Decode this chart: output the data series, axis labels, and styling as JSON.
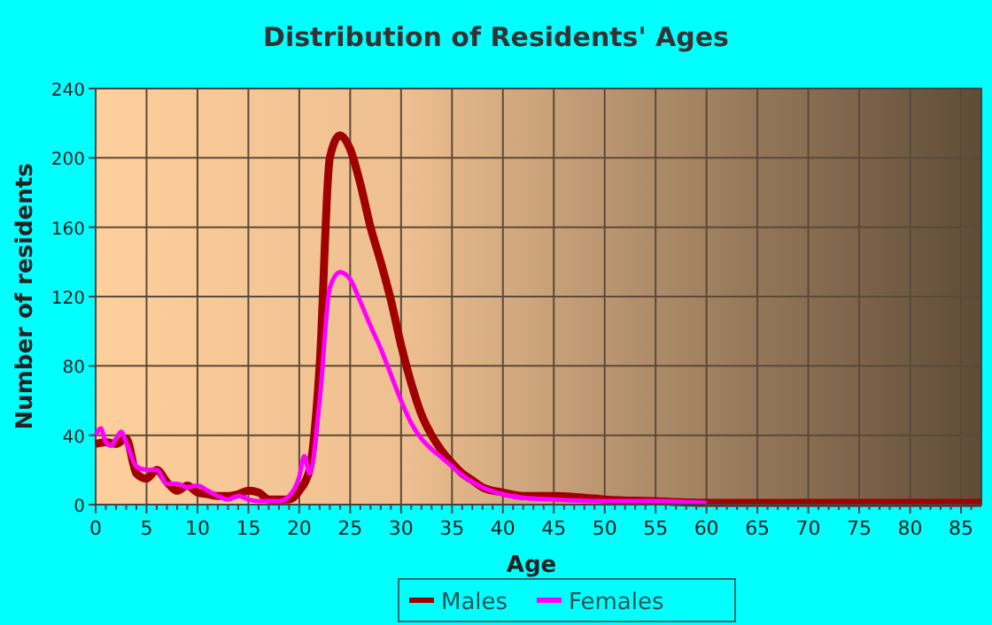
{
  "chart_data": {
    "type": "line",
    "title": "Distribution of Residents' Ages",
    "xlabel": "Age",
    "ylabel": "Number of residents",
    "xlim": [
      0,
      87
    ],
    "ylim": [
      0,
      240
    ],
    "xticks": [
      0,
      {
        "value": 1,
        "label": null
      },
      {
        "value": 2,
        "label": null
      },
      {
        "value": 3,
        "label": null
      },
      {
        "value": 4,
        "label": null
      },
      5,
      {
        "value": 6,
        "label": null
      },
      {
        "value": 7,
        "label": null
      },
      {
        "value": 8,
        "label": null
      },
      {
        "value": 9,
        "label": null
      },
      10,
      {
        "value": 11,
        "label": null
      },
      {
        "value": 12,
        "label": null
      },
      {
        "value": 13,
        "label": null
      },
      {
        "value": 14,
        "label": null
      },
      15,
      {
        "value": 16,
        "label": null
      },
      {
        "value": 17,
        "label": null
      },
      {
        "value": 18,
        "label": null
      },
      {
        "value": 19,
        "label": null
      },
      20,
      {
        "value": 21,
        "label": null
      },
      {
        "value": 22,
        "label": null
      },
      {
        "value": 23,
        "label": null
      },
      {
        "value": 24,
        "label": null
      },
      25,
      {
        "value": 26,
        "label": null
      },
      {
        "value": 27,
        "label": null
      },
      {
        "value": 28,
        "label": null
      },
      {
        "value": 29,
        "label": null
      },
      30,
      {
        "value": 31,
        "label": null
      },
      {
        "value": 32,
        "label": null
      },
      {
        "value": 33,
        "label": null
      },
      {
        "value": 34,
        "label": null
      },
      35,
      {
        "value": 36,
        "label": null
      },
      {
        "value": 37,
        "label": null
      },
      {
        "value": 38,
        "label": null
      },
      {
        "value": 39,
        "label": null
      },
      40,
      {
        "value": 41,
        "label": null
      },
      {
        "value": 42,
        "label": null
      },
      {
        "value": 43,
        "label": null
      },
      {
        "value": 44,
        "label": null
      },
      45,
      {
        "value": 46,
        "label": null
      },
      {
        "value": 47,
        "label": null
      },
      {
        "value": 48,
        "label": null
      },
      {
        "value": 49,
        "label": null
      },
      50,
      {
        "value": 51,
        "label": null
      },
      {
        "value": 52,
        "label": null
      },
      {
        "value": 53,
        "label": null
      },
      {
        "value": 54,
        "label": null
      },
      55,
      {
        "value": 56,
        "label": null
      },
      {
        "value": 57,
        "label": null
      },
      {
        "value": 58,
        "label": null
      },
      {
        "value": 59,
        "label": null
      },
      60,
      {
        "value": 61,
        "label": null
      },
      {
        "value": 62,
        "label": null
      },
      {
        "value": 63,
        "label": null
      },
      {
        "value": 64,
        "label": null
      },
      65,
      {
        "value": 66,
        "label": null
      },
      {
        "value": 67,
        "label": null
      },
      {
        "value": 68,
        "label": null
      },
      {
        "value": 69,
        "label": null
      },
      70,
      {
        "value": 71,
        "label": null
      },
      {
        "value": 72,
        "label": null
      },
      {
        "value": 73,
        "label": null
      },
      {
        "value": 74,
        "label": null
      },
      75,
      {
        "value": 76,
        "label": null
      },
      {
        "value": 77,
        "label": null
      },
      {
        "value": 78,
        "label": null
      },
      {
        "value": 79,
        "label": null
      },
      80,
      {
        "value": 81,
        "label": null
      },
      {
        "value": 82,
        "label": null
      },
      {
        "value": 83,
        "label": null
      },
      {
        "value": 84,
        "label": null
      },
      85,
      {
        "value": 86,
        "label": null
      }
    ],
    "yticks": [
      0,
      40,
      80,
      120,
      160,
      200,
      240
    ],
    "grid": true,
    "legend": "bottom",
    "series": [
      {
        "name": "Males",
        "color": "#a00000",
        "x": [
          0,
          1,
          2,
          3,
          4,
          5,
          6,
          7,
          8,
          9,
          10,
          11,
          12,
          13,
          14,
          15,
          16,
          17,
          18,
          19,
          20,
          21,
          22,
          23,
          24,
          25,
          26,
          27,
          28,
          29,
          30,
          31,
          32,
          33,
          34,
          35,
          36,
          37,
          38,
          40,
          42,
          45,
          48,
          50,
          55,
          60,
          70,
          87
        ],
        "values": [
          35,
          36,
          35,
          38,
          18,
          15,
          20,
          13,
          8,
          11,
          7,
          6,
          5,
          5,
          6,
          8,
          7,
          3,
          3,
          3,
          8,
          20,
          80,
          200,
          213,
          205,
          185,
          160,
          140,
          118,
          92,
          70,
          52,
          40,
          31,
          24,
          18,
          14,
          10,
          7,
          5,
          5,
          4,
          3,
          2,
          1,
          1,
          1
        ]
      },
      {
        "name": "Females",
        "color": "#ff00ff",
        "x": [
          0,
          0.5,
          1,
          1.5,
          2,
          2.5,
          3,
          4,
          5,
          6,
          7,
          8,
          9,
          10,
          11,
          12,
          13,
          14,
          15,
          16,
          17,
          18,
          19,
          20,
          20.5,
          21,
          22,
          23,
          24,
          25,
          26,
          27,
          28,
          29,
          30,
          31,
          32,
          33,
          34,
          35,
          36,
          38,
          40,
          42,
          45,
          50,
          55,
          60
        ],
        "values": [
          40,
          44,
          36,
          34,
          38,
          42,
          36,
          22,
          20,
          20,
          12,
          12,
          10,
          11,
          8,
          5,
          3,
          5,
          3,
          2,
          2,
          2,
          5,
          16,
          28,
          18,
          60,
          125,
          134,
          130,
          117,
          103,
          90,
          75,
          60,
          47,
          38,
          32,
          27,
          22,
          17,
          10,
          6,
          4,
          3,
          2,
          2,
          1
        ]
      }
    ]
  }
}
